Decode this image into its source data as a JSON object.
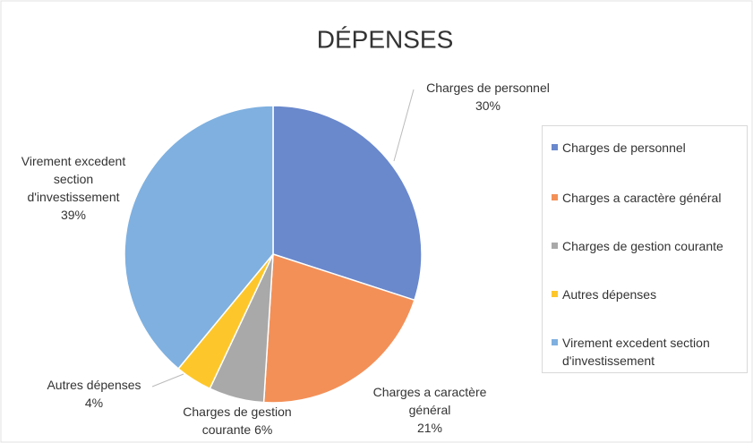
{
  "chart_data": {
    "type": "pie",
    "title": "DÉPENSES",
    "categories": [
      "Charges de personnel",
      "Charges a caractère général",
      "Charges de gestion courante",
      "Autres dépenses",
      "Virement excedent section d'investissement"
    ],
    "values": [
      30,
      21,
      6,
      4,
      39
    ],
    "value_labels": [
      "30%",
      "21%",
      "6%",
      "4%",
      "39%"
    ],
    "colors": [
      "#6a88cc",
      "#f39058",
      "#a9a9a9",
      "#fdc72c",
      "#7fb0e0"
    ],
    "legend": "right"
  }
}
